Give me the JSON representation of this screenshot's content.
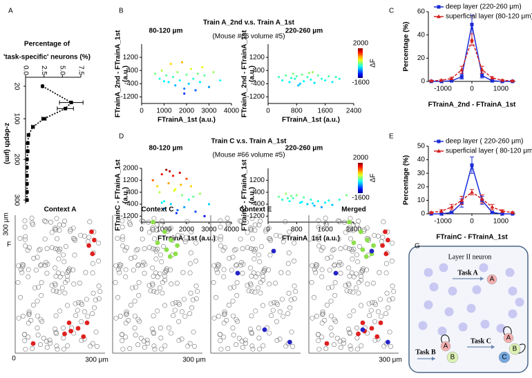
{
  "panel_labels": [
    "A",
    "B",
    "C",
    "D",
    "E",
    "F",
    "G"
  ],
  "chart_data": [
    {
      "type": "line",
      "orientation": "horizontal",
      "title": [
        "Percentage of",
        "'task-specific' neurons (%)"
      ],
      "x_label": "z-depth (μm)",
      "x": [
        20,
        60,
        75,
        100,
        120,
        140,
        160,
        180,
        200,
        220,
        240,
        260,
        280,
        300
      ],
      "values": [
        2.3,
        6.2,
        5.4,
        2.5,
        1.0,
        0.4,
        0.3,
        0.3,
        0.2,
        0.2,
        0.2,
        0.2,
        0.2,
        0.2
      ],
      "errors": [
        0,
        1.6,
        1.1,
        0.3,
        0.2,
        0.1,
        0,
        0,
        0,
        0,
        0,
        0,
        0,
        0
      ],
      "color": "#000000",
      "xlim": [
        20,
        300
      ],
      "xticks": [
        20,
        100,
        200,
        300
      ],
      "ylim": [
        0,
        7.5
      ],
      "yticks": [
        {
          "value": 0,
          "label": "0.0"
        },
        2.5,
        {
          "value": 5,
          "label": "5.0"
        },
        7.5
      ]
    },
    {
      "type": "scatter",
      "group_title": "Train A_2nd  v.s.  Train A_1st",
      "group_subtitle": "(Mouse #66 volume #5)",
      "title": "80-120 μm",
      "x_label": "FTrainA_1st  (a.u.)",
      "y_label": [
        "FTrainA_2nd - FTrainA_1st",
        "(a.u.)"
      ],
      "x": [
        600,
        800,
        900,
        1100,
        1200,
        1300,
        1400,
        1500,
        1600,
        1700,
        1800,
        1900,
        2000,
        2100,
        2200,
        2300,
        2400,
        2500,
        2600,
        2800,
        3000,
        3200,
        3500,
        1000,
        1900,
        2700
      ],
      "values": [
        200,
        -100,
        400,
        100,
        -300,
        800,
        0,
        -500,
        300,
        -200,
        900,
        -700,
        150,
        -400,
        500,
        -100,
        -800,
        200,
        -300,
        100,
        -600,
        300,
        -200,
        -250,
        -1000,
        600
      ],
      "xlim": [
        0,
        4000
      ],
      "xticks": [
        0,
        1000,
        2000,
        3000,
        4000
      ],
      "ylim": [
        -1600,
        2000
      ],
      "yticks": [
        -1200,
        -400,
        400,
        1200
      ],
      "colormap": "jet",
      "clim": [
        -1600,
        2000
      ]
    },
    {
      "type": "scatter",
      "title": "220-260 μm",
      "x_label": "FTrainA_1st  (a.u.)",
      "y_label": [
        "FTrainA_2nd - FTrainA_1st",
        "(a.u.)"
      ],
      "x": [
        300,
        400,
        500,
        600,
        700,
        750,
        800,
        900,
        950,
        1000,
        1100,
        1200,
        1250,
        1300,
        1400,
        1500,
        1600,
        1700,
        1800,
        1900,
        2000,
        850,
        1150,
        650
      ],
      "values": [
        0,
        -200,
        100,
        -300,
        200,
        -100,
        50,
        -400,
        150,
        -250,
        0,
        -150,
        300,
        -350,
        100,
        -100,
        -200,
        50,
        -300,
        0,
        -100,
        -500,
        250,
        -50
      ],
      "xlim": [
        0,
        2400
      ],
      "xticks": [
        0,
        800,
        1600,
        2400
      ],
      "ylim": [
        -1600,
        2000
      ],
      "yticks": [
        -1200,
        -400,
        400,
        1200
      ],
      "colormap": "jet",
      "clim": [
        -1600,
        2000
      ],
      "colorbar": {
        "label": "ΔF",
        "ticks": [
          2000,
          -1600
        ]
      }
    },
    {
      "type": "line",
      "x_label": "FTrainA_2nd - FTrainA_1st",
      "y_label": "Percentage (%)",
      "legend": "upper right",
      "x": [
        -1400,
        -1050,
        -700,
        -350,
        0,
        350,
        700,
        1050,
        1400
      ],
      "xlim": [
        -1500,
        1500
      ],
      "xticks": [
        -1000,
        0,
        1000
      ],
      "ylim": [
        0,
        60
      ],
      "yticks": [
        0,
        20,
        40,
        60
      ],
      "series": [
        {
          "name": "deep layer (220-260 μm)",
          "color": "#1a2ad6",
          "marker": "square",
          "values": [
            0,
            0,
            0.5,
            4,
            49,
            5,
            0.5,
            0,
            0
          ],
          "errors": [
            0,
            0,
            0.3,
            2,
            8,
            2,
            0.3,
            0,
            0
          ]
        },
        {
          "name": "superficial layer (80-120 μm)",
          "color": "#d42020",
          "marker": "triangle",
          "values": [
            0.5,
            1,
            2.5,
            10,
            36,
            10,
            3,
            1,
            0.5
          ],
          "errors": [
            0.3,
            0.5,
            1,
            3,
            5,
            3,
            1,
            0.5,
            0.3
          ]
        }
      ]
    },
    {
      "type": "scatter",
      "group_title": "Train C  v.s.  Train A_1st",
      "group_subtitle": "(Mouse #66 volume #5)",
      "title": "80-120 μm",
      "x_label": "FTrainA_1st  (a.u.)",
      "y_label": [
        "FTrainC - FTrainA_1st",
        "(a.u.)"
      ],
      "x": [
        500,
        700,
        800,
        900,
        1000,
        1100,
        1200,
        1300,
        1400,
        1500,
        1600,
        1700,
        1800,
        1900,
        2000,
        2100,
        2200,
        2400,
        2600,
        2800,
        3000,
        1000,
        1250,
        1550,
        1750,
        2300,
        900,
        1450
      ],
      "values": [
        1200,
        800,
        400,
        1600,
        -200,
        1900,
        1000,
        -400,
        1500,
        600,
        -800,
        1700,
        200,
        -600,
        1300,
        -100,
        800,
        -900,
        300,
        -1200,
        -400,
        -700,
        1800,
        -1000,
        900,
        100,
        -300,
        500
      ],
      "xlim": [
        0,
        4000
      ],
      "xticks": [
        0,
        1000,
        2000,
        3000,
        4000
      ],
      "ylim": [
        -1600,
        2000
      ],
      "yticks": [
        -1200,
        -400,
        400,
        1200,
        2000
      ],
      "colormap": "jet",
      "clim": [
        -1600,
        2000
      ]
    },
    {
      "type": "scatter",
      "title": "220-260 μm",
      "x_label": "FTrainA_1st  (a.u.)",
      "y_label": [
        "FTrainC - FTrainA_1st",
        "(a.u.)"
      ],
      "x": [
        300,
        400,
        500,
        600,
        700,
        800,
        900,
        1000,
        1100,
        1200,
        1300,
        1400,
        1500,
        1600,
        1700,
        1800,
        2000,
        2200,
        650,
        950,
        1250,
        550
      ],
      "values": [
        100,
        -100,
        300,
        -200,
        0,
        200,
        -300,
        50,
        -400,
        -100,
        -500,
        -200,
        -600,
        -300,
        -150,
        -450,
        -100,
        200,
        150,
        -250,
        -350,
        0
      ],
      "xlim": [
        0,
        2400
      ],
      "xticks": [
        0,
        800,
        1600,
        2400
      ],
      "ylim": [
        -1600,
        2000
      ],
      "yticks": [
        -1200,
        -400,
        400,
        1200
      ],
      "colormap": "jet",
      "clim": [
        -1600,
        2000
      ],
      "colorbar": {
        "label": "ΔF",
        "ticks": [
          2000,
          -1600
        ]
      }
    },
    {
      "type": "line",
      "x_label": "FTrainC - FTrainA_1st",
      "y_label": "Percentage (%)",
      "legend": "upper right",
      "x": [
        -1400,
        -1050,
        -700,
        -350,
        0,
        350,
        700,
        1050,
        1400
      ],
      "xlim": [
        -1500,
        1500
      ],
      "xticks": [
        -1000,
        0,
        1000
      ],
      "ylim": [
        0,
        50
      ],
      "yticks": [
        0,
        10,
        20,
        30,
        40,
        50
      ],
      "series": [
        {
          "name": "deep layer ( 220-260 μm)",
          "color": "#1a2ad6",
          "marker": "square",
          "values": [
            0,
            0,
            1,
            8,
            36,
            10,
            1,
            0,
            0
          ],
          "errors": [
            0,
            0,
            0.5,
            3,
            6,
            3,
            0.5,
            0,
            0
          ]
        },
        {
          "name": "superficial layer ( 80-120 μm)",
          "color": "#d42020",
          "marker": "triangle",
          "values": [
            1,
            2,
            5,
            10,
            16,
            11,
            5,
            2,
            1
          ],
          "errors": [
            0.5,
            1,
            2,
            3,
            2,
            3,
            2,
            1,
            0.5
          ]
        }
      ]
    }
  ],
  "map": {
    "y_label": "300 μm",
    "origin": "0",
    "x_labels": [
      "300 μm",
      "300 μm",
      "300 μm"
    ],
    "contexts": [
      {
        "name": "Context A",
        "color": "#e02020"
      },
      {
        "name": "Context C",
        "color": "#8ee04a"
      },
      {
        "name": "Context E",
        "color": "#2424c8"
      },
      {
        "name": "Merged",
        "color": "#000000"
      }
    ]
  },
  "diagram": {
    "label": "Layer II neuron",
    "tasks": [
      "Task A",
      "Task B",
      "Task C"
    ],
    "nodes": [
      "A",
      "A",
      "B",
      "A",
      "B",
      "C"
    ]
  }
}
